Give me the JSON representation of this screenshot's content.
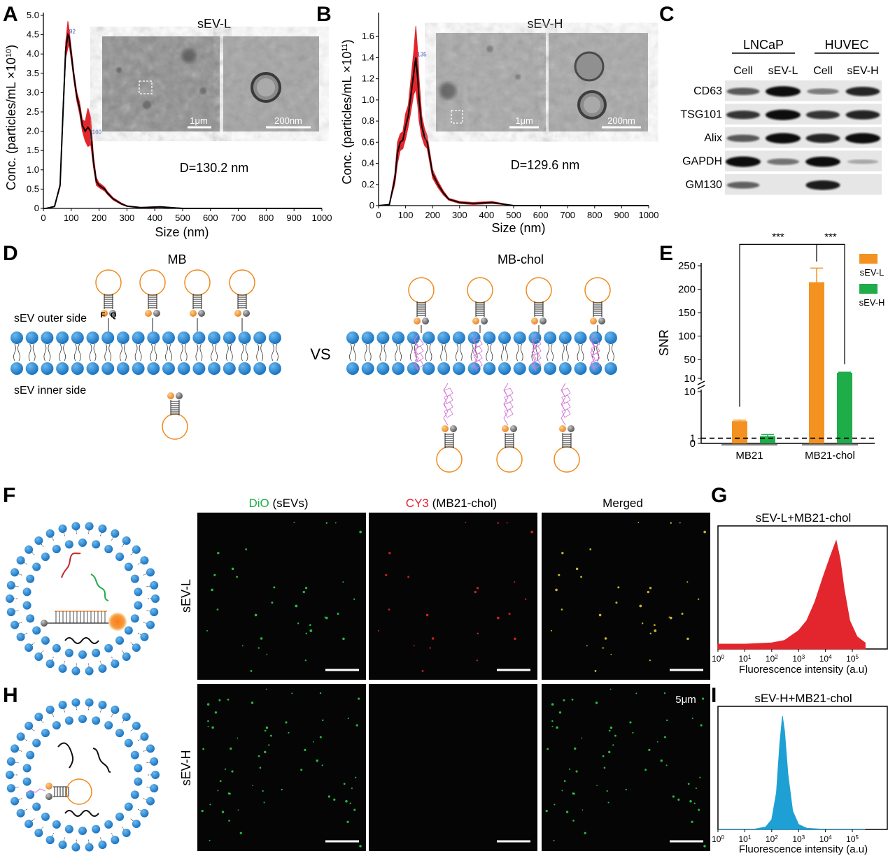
{
  "panels": {
    "A": {
      "letter": "A",
      "sample": "sEV-L",
      "diameter": "D=130.2 nm",
      "ylabel_main": "Conc. (particles/mL ×10",
      "ylabel_exp": "10",
      "ylabel_close": ")",
      "xlabel": "Size  (nm)",
      "scale_wide": "1μm",
      "scale_zoom": "200nm",
      "peak1_tag": "92",
      "peak2_tag": "160"
    },
    "B": {
      "letter": "B",
      "sample": "sEV-H",
      "diameter": "D=129.6 nm",
      "ylabel_main": "Conc. (particles/mL ×10",
      "ylabel_exp": "11",
      "ylabel_close": ")",
      "xlabel": "Size  (nm)",
      "scale_wide": "1μm",
      "scale_zoom": "200nm",
      "peak1_tag": "135"
    },
    "C": {
      "letter": "C",
      "groups": [
        "LNCaP",
        "HUVEC"
      ],
      "lanes": [
        "Cell",
        "sEV-L",
        "Cell",
        "sEV-H"
      ],
      "proteins": [
        {
          "name": "CD63",
          "intensity": [
            0.5,
            1.0,
            0.3,
            0.8
          ]
        },
        {
          "name": "TSG101",
          "intensity": [
            0.7,
            1.0,
            0.7,
            0.8
          ]
        },
        {
          "name": "Alix",
          "intensity": [
            0.5,
            1.0,
            0.8,
            1.0
          ]
        },
        {
          "name": "GAPDH",
          "intensity": [
            1.0,
            0.35,
            0.95,
            0.05
          ]
        },
        {
          "name": "GM130",
          "intensity": [
            0.45,
            0.0,
            0.85,
            0.0
          ]
        }
      ]
    },
    "D": {
      "letter": "D",
      "left_title": "MB",
      "right_title": "MB-chol",
      "vs": "VS",
      "outer_label": "sEV outer side",
      "inner_label": "sEV inner side",
      "f_tag": "F",
      "q_tag": "Q"
    },
    "E": {
      "letter": "E"
    },
    "F": {
      "letter": "F",
      "col_titles": [
        {
          "color_word": "DiO",
          "rest": " (sEVs)"
        },
        {
          "color_word": "CY3",
          "rest": " (MB21-chol)"
        },
        {
          "color_word": "",
          "rest": "Merged"
        }
      ],
      "row_label": "sEV-L"
    },
    "G": {
      "letter": "G",
      "title": "sEV-L+MB21-chol",
      "xlabel": "Fluorescence intensity (a.u)"
    },
    "H": {
      "letter": "H",
      "row_label": "sEV-H",
      "scale_label": "5μm"
    },
    "I": {
      "letter": "I",
      "title": "sEV-H+MB21-chol",
      "xlabel": "Fluorescence intensity (a.u)"
    }
  },
  "chart_data": [
    {
      "panel": "A",
      "type": "line",
      "xlabel": "Size  (nm)",
      "ylabel": "Conc. (particles/mL ×10^10)",
      "xlim": [
        0,
        1000
      ],
      "ylim": [
        0,
        5.0
      ],
      "xticks": [
        0,
        100,
        200,
        300,
        400,
        500,
        600,
        700,
        800,
        900,
        1000
      ],
      "yticks": [
        0,
        0.5,
        1.0,
        1.5,
        2.0,
        2.5,
        3.0,
        3.5,
        4.0,
        4.5,
        5.0
      ],
      "ytick_labels": [
        "0",
        "0.5",
        "1.0",
        "1.5",
        "2.0",
        "2.5",
        "3.0",
        "3.5",
        "4.0",
        "4.5",
        "5.0"
      ],
      "series": [
        {
          "x": [
            0,
            10,
            40,
            60,
            70,
            80,
            88,
            92,
            100,
            110,
            120,
            130,
            140,
            150,
            160,
            170,
            180,
            190,
            200,
            210,
            220,
            230,
            250,
            280,
            300,
            350,
            420,
            500,
            1000
          ],
          "y": [
            0,
            0,
            0.05,
            0.6,
            2.4,
            4.1,
            4.5,
            4.45,
            4.0,
            3.4,
            2.9,
            2.6,
            2.15,
            2.0,
            2.1,
            2.0,
            1.2,
            0.7,
            0.6,
            0.55,
            0.5,
            0.4,
            0.25,
            0.12,
            0.06,
            0.02,
            0.04,
            0.0,
            0.0
          ],
          "err": [
            0,
            0,
            0,
            0.05,
            0.15,
            0.2,
            0.35,
            0.2,
            0.15,
            0.12,
            0.12,
            0.15,
            0.15,
            0.25,
            0.5,
            0.35,
            0.15,
            0.1,
            0.06,
            0.06,
            0.05,
            0.04,
            0.03,
            0.02,
            0.01,
            0.01,
            0.01,
            0,
            0
          ]
        }
      ]
    },
    {
      "panel": "B",
      "type": "line",
      "xlabel": "Size  (nm)",
      "ylabel": "Conc. (particles/mL ×10^11)",
      "xlim": [
        0,
        1000
      ],
      "ylim": [
        0,
        1.8
      ],
      "xticks": [
        0,
        100,
        200,
        300,
        400,
        500,
        600,
        700,
        800,
        900,
        1000
      ],
      "yticks": [
        0,
        0.2,
        0.4,
        0.6,
        0.8,
        1.0,
        1.2,
        1.4,
        1.6
      ],
      "ytick_labels": [
        "0",
        "0.2",
        "0.4",
        "0.6",
        "0.8",
        "1.0",
        "1.2",
        "1.4",
        "1.6"
      ],
      "series": [
        {
          "x": [
            0,
            40,
            60,
            70,
            80,
            90,
            100,
            110,
            120,
            130,
            138,
            145,
            150,
            160,
            170,
            180,
            190,
            200,
            220,
            240,
            260,
            300,
            350,
            420,
            500,
            1000
          ],
          "y": [
            0,
            0.01,
            0.25,
            0.5,
            0.6,
            0.62,
            0.75,
            0.85,
            1.05,
            1.25,
            1.4,
            1.2,
            1.0,
            0.75,
            0.65,
            0.6,
            0.45,
            0.3,
            0.2,
            0.12,
            0.06,
            0.03,
            0.02,
            0.03,
            0.0,
            0.0
          ],
          "err": [
            0,
            0,
            0.05,
            0.1,
            0.08,
            0.08,
            0.12,
            0.1,
            0.15,
            0.2,
            0.3,
            0.25,
            0.2,
            0.1,
            0.08,
            0.06,
            0.05,
            0.04,
            0.03,
            0.02,
            0.01,
            0.01,
            0.01,
            0.01,
            0,
            0
          ]
        }
      ]
    },
    {
      "panel": "E",
      "type": "bar",
      "ylabel": "SNR",
      "categories": [
        "MB21",
        "MB21-chol"
      ],
      "series": [
        {
          "name": "sEV-L",
          "color": "#f39221",
          "values": [
            4.3,
            215
          ],
          "err": [
            0.2,
            30
          ]
        },
        {
          "name": "sEV-H",
          "color": "#1fad4a",
          "values": [
            1.4,
            22
          ],
          "err": [
            0.3,
            1.0
          ]
        }
      ],
      "reference_line": 1,
      "axis_break": [
        10,
        10
      ],
      "yticks_lower": [
        0,
        1,
        10
      ],
      "yticks_upper": [
        10,
        50,
        100,
        150,
        200,
        250
      ],
      "significance": [
        "***",
        "***"
      ]
    },
    {
      "panel": "G",
      "type": "area",
      "title": "sEV-L+MB21-chol",
      "xlabel": "Fluorescence intensity (a.u)",
      "xscale": "log",
      "xticks": [
        1,
        10,
        100,
        1000,
        10000,
        100000
      ],
      "color": "#e3262d",
      "x": [
        1,
        10,
        100,
        300,
        1000,
        2000,
        4000,
        8000,
        15000,
        25000,
        35000,
        50000,
        80000,
        150000,
        300000
      ],
      "y": [
        0.04,
        0.04,
        0.05,
        0.07,
        0.12,
        0.2,
        0.35,
        0.55,
        0.72,
        0.85,
        0.7,
        0.45,
        0.2,
        0.1,
        0.05
      ]
    },
    {
      "panel": "I",
      "type": "area",
      "title": "sEV-H+MB21-chol",
      "xlabel": "Fluorescence intensity (a.u)",
      "xscale": "log",
      "xticks": [
        1,
        10,
        100,
        1000,
        10000,
        100000
      ],
      "color": "#1ea0d5",
      "x": [
        1,
        20,
        60,
        100,
        150,
        200,
        250,
        300,
        400,
        600,
        1000,
        2000,
        10000,
        300000
      ],
      "y": [
        0,
        0.0,
        0.02,
        0.08,
        0.3,
        0.7,
        0.92,
        0.8,
        0.45,
        0.15,
        0.04,
        0.01,
        0,
        0
      ]
    }
  ]
}
